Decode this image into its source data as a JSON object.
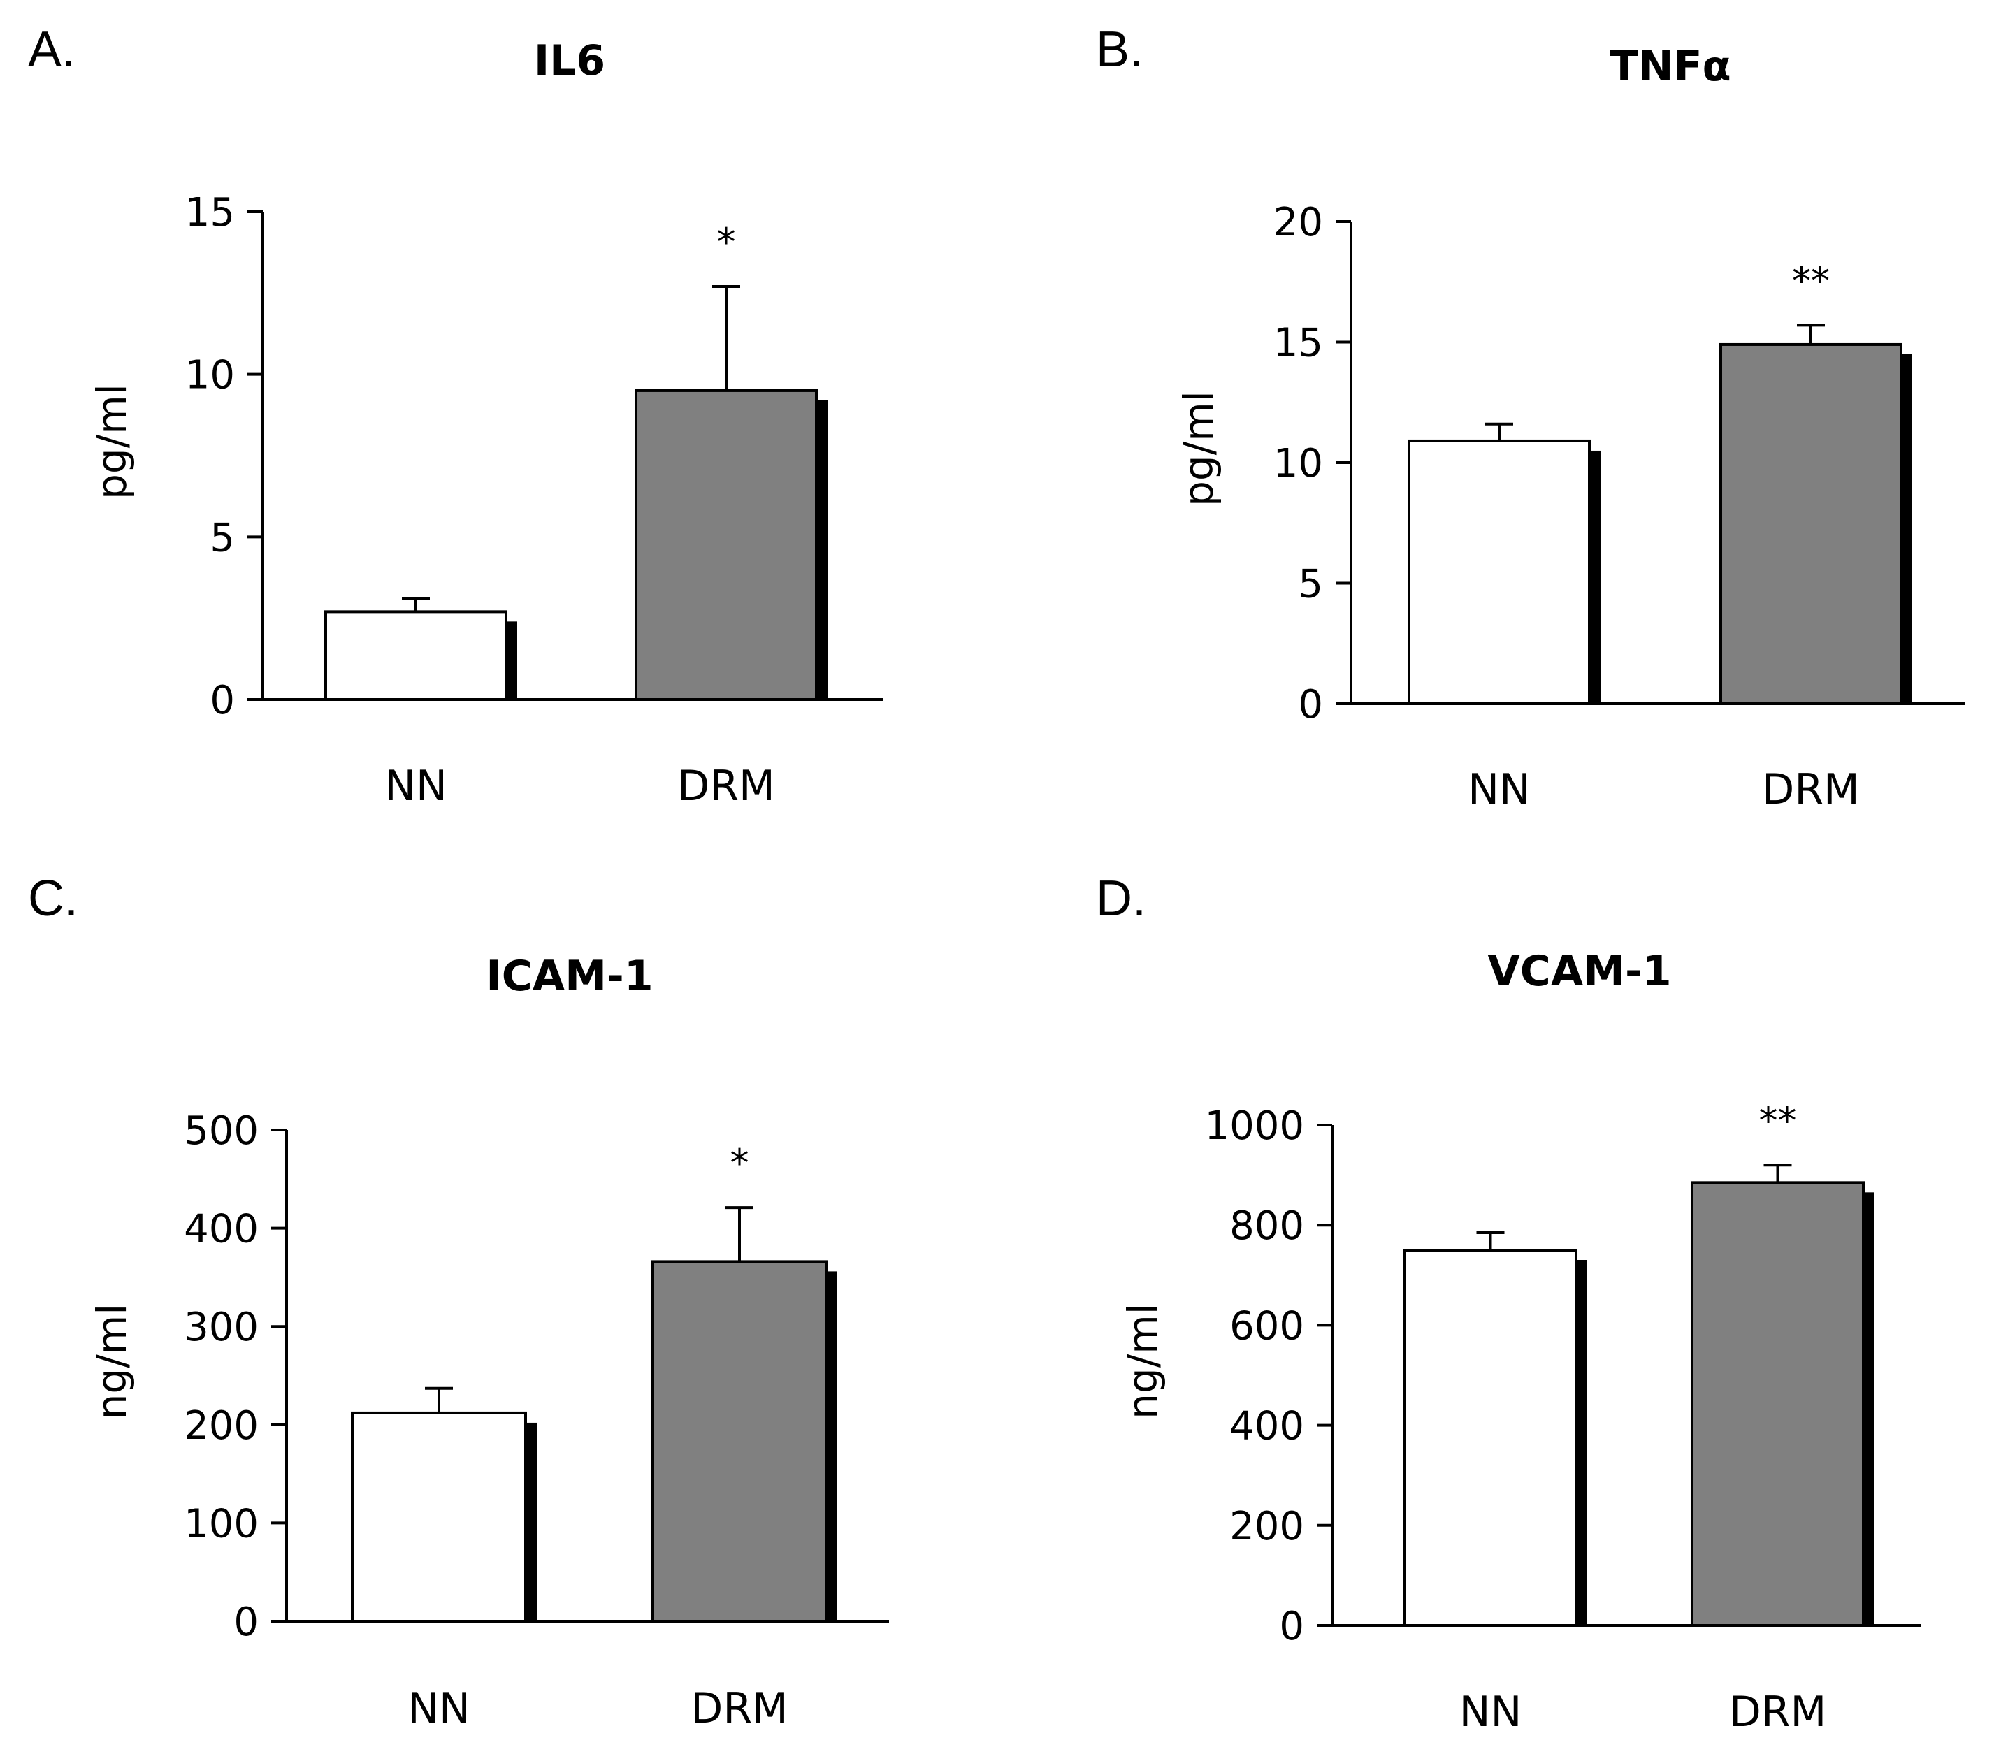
{
  "figure": {
    "colors": {
      "nn_bar": "#ffffff",
      "drm_bar": "#808080",
      "shadow": "#000000",
      "axis": "#000000"
    }
  },
  "chart_data": [
    {
      "panel": "A.",
      "type": "bar",
      "title": "IL6",
      "ylabel": "pg/ml",
      "xlabel": "",
      "categories": [
        "NN",
        "DRM"
      ],
      "values": [
        2.7,
        9.5
      ],
      "errors": [
        0.4,
        3.2
      ],
      "significance": [
        "",
        "*"
      ],
      "ylim": [
        0,
        15
      ],
      "yticks": [
        0,
        5,
        10,
        15
      ]
    },
    {
      "panel": "B.",
      "type": "bar",
      "title": "TNFα",
      "ylabel": "pg/ml",
      "xlabel": "",
      "categories": [
        "NN",
        "DRM"
      ],
      "values": [
        10.9,
        14.9
      ],
      "errors": [
        0.7,
        0.8
      ],
      "significance": [
        "",
        "**"
      ],
      "ylim": [
        0,
        20
      ],
      "yticks": [
        0,
        5,
        10,
        15,
        20
      ]
    },
    {
      "panel": "C.",
      "type": "bar",
      "title": "ICAM-1",
      "ylabel": "ng/ml",
      "xlabel": "",
      "categories": [
        "NN",
        "DRM"
      ],
      "values": [
        212,
        366
      ],
      "errors": [
        25,
        55
      ],
      "significance": [
        "",
        "*"
      ],
      "ylim": [
        0,
        500
      ],
      "yticks": [
        0,
        100,
        200,
        300,
        400,
        500
      ]
    },
    {
      "panel": "D.",
      "type": "bar",
      "title": "VCAM-1",
      "ylabel": "ng/ml",
      "xlabel": "",
      "categories": [
        "NN",
        "DRM"
      ],
      "values": [
        750,
        885
      ],
      "errors": [
        35,
        35
      ],
      "significance": [
        "",
        "**"
      ],
      "ylim": [
        0,
        1000
      ],
      "yticks": [
        0,
        200,
        400,
        600,
        800,
        1000
      ]
    }
  ]
}
